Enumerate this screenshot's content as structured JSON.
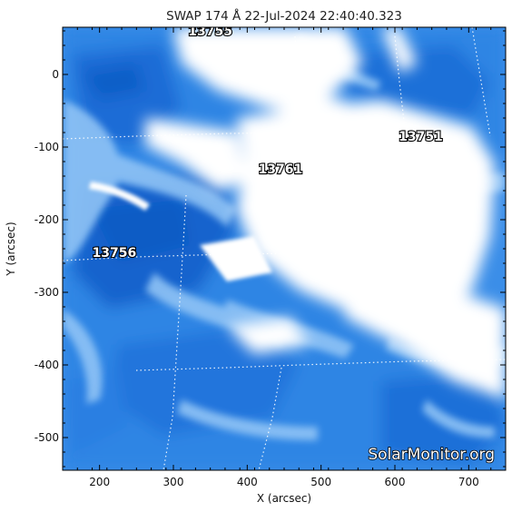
{
  "chart_data": {
    "type": "heatmap",
    "title": "SWAP 174 Å 22-Jul-2024 22:40:40.323",
    "xlabel": "X (arcsec)",
    "ylabel": "Y (arcsec)",
    "xlim": [
      150,
      750
    ],
    "ylim": [
      -545,
      65
    ],
    "x_ticks": [
      200,
      300,
      400,
      500,
      600,
      700
    ],
    "y_ticks": [
      0,
      -100,
      -200,
      -300,
      -400,
      -500
    ],
    "colormap": [
      "#ffffff",
      "#c6e0fb",
      "#6cb0f2",
      "#2a86e6",
      "#0e5fc8"
    ],
    "regions": [
      {
        "label": "13755",
        "x": 350,
        "y": 60
      },
      {
        "label": "13751",
        "x": 635,
        "y": -85
      },
      {
        "label": "13761",
        "x": 445,
        "y": -130
      },
      {
        "label": "13756",
        "x": 220,
        "y": -245
      }
    ],
    "watermark": "SolarMonitor.org"
  }
}
